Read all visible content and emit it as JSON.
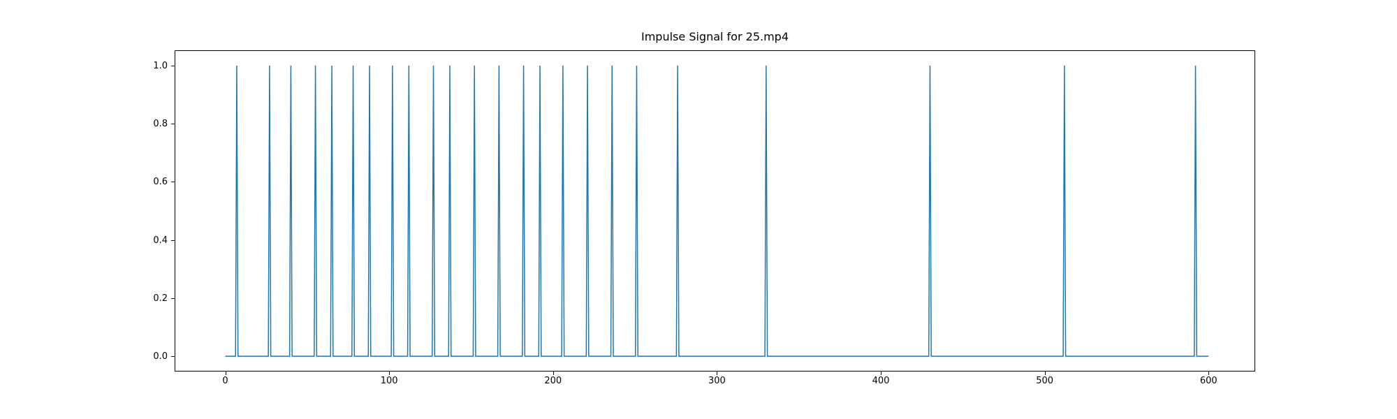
{
  "chart_data": {
    "type": "line",
    "title": "Impulse Signal for 25.mp4",
    "line_color": "#1f77b4",
    "background_color": "#ffffff",
    "axis_color": "#000000",
    "xlim": [
      -30.5,
      628
    ],
    "ylim": [
      -0.05,
      1.05
    ],
    "x_ticks": [
      0,
      100,
      200,
      300,
      400,
      500,
      600
    ],
    "y_ticks": [
      0.0,
      0.2,
      0.4,
      0.6,
      0.8,
      1.0
    ],
    "grid": false,
    "legend": null,
    "xlabel": "",
    "ylabel": "",
    "baseline_value": 0.0,
    "signal_start_x": 0,
    "signal_end_x": 600,
    "impulse_value": 1.0,
    "impulse_half_width": 0.75,
    "impulse_positions": [
      7,
      27,
      40,
      55,
      65,
      78,
      88,
      102,
      112,
      127,
      137,
      152,
      167,
      182,
      192,
      206,
      221,
      236,
      251,
      276,
      330,
      430,
      512,
      592
    ]
  }
}
